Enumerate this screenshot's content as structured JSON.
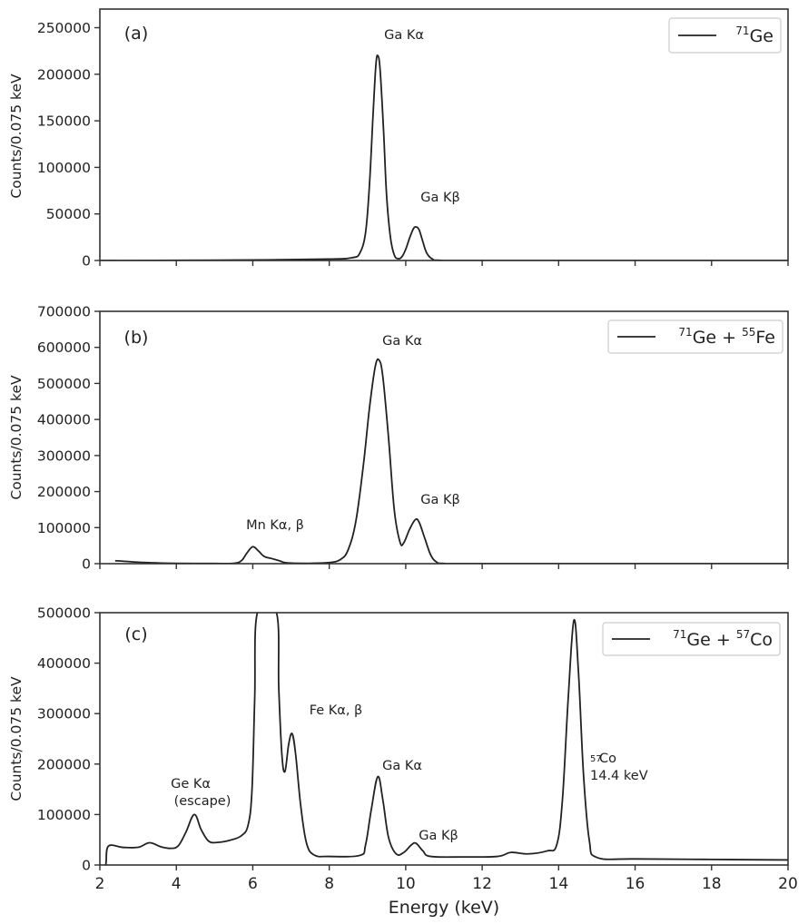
{
  "chart_data": [
    {
      "type": "line",
      "panel_label": "(a)",
      "ylabel": "Counts/0.075 keV",
      "xlabel": "",
      "xlim": [
        2,
        20
      ],
      "ylim": [
        0,
        270000
      ],
      "xticks": [
        2,
        4,
        6,
        8,
        10,
        12,
        14,
        16,
        18,
        20
      ],
      "yticks": [
        0,
        50000,
        100000,
        150000,
        200000,
        250000
      ],
      "show_xtick_labels": false,
      "grid": false,
      "legend_position": "top-right",
      "legend": [
        {
          "t": "71",
          "sup": true
        },
        {
          "t": "Ge"
        }
      ],
      "annotations": [
        "Ga Kα",
        "Ga Kβ"
      ],
      "series": [
        {
          "color": "#222222",
          "points": [
            [
              2,
              0
            ],
            [
              4,
              200
            ],
            [
              6,
              600
            ],
            [
              8,
              1500
            ],
            [
              8.6,
              3000
            ],
            [
              8.8,
              8000
            ],
            [
              8.95,
              30000
            ],
            [
              9.05,
              80000
            ],
            [
              9.15,
              160000
            ],
            [
              9.22,
              210000
            ],
            [
              9.27,
              220000
            ],
            [
              9.33,
              205000
            ],
            [
              9.42,
              140000
            ],
            [
              9.5,
              70000
            ],
            [
              9.6,
              25000
            ],
            [
              9.7,
              6000
            ],
            [
              9.8,
              2000
            ],
            [
              9.9,
              4000
            ],
            [
              10.0,
              12000
            ],
            [
              10.1,
              24000
            ],
            [
              10.2,
              34000
            ],
            [
              10.27,
              36000
            ],
            [
              10.35,
              33000
            ],
            [
              10.45,
              20000
            ],
            [
              10.55,
              8000
            ],
            [
              10.7,
              1500
            ],
            [
              10.9,
              200
            ],
            [
              12,
              0
            ],
            [
              20,
              0
            ]
          ]
        }
      ]
    },
    {
      "type": "line",
      "panel_label": "(b)",
      "ylabel": "Counts/0.075 keV",
      "xlabel": "",
      "xlim": [
        2,
        20
      ],
      "ylim": [
        0,
        700000
      ],
      "xticks": [
        2,
        4,
        6,
        8,
        10,
        12,
        14,
        16,
        18,
        20
      ],
      "yticks": [
        0,
        100000,
        200000,
        300000,
        400000,
        500000,
        600000,
        700000
      ],
      "show_xtick_labels": false,
      "grid": false,
      "legend_position": "top-right",
      "legend": [
        {
          "t": "71",
          "sup": true
        },
        {
          "t": "Ge + "
        },
        {
          "t": "55",
          "sup": true
        },
        {
          "t": "Fe"
        }
      ],
      "annotations": [
        "Ga Kα",
        "Ga Kβ",
        "Mn Kα, β"
      ],
      "series": [
        {
          "color": "#222222",
          "points": [
            [
              2.4,
              8000
            ],
            [
              2.6,
              7000
            ],
            [
              3.0,
              4000
            ],
            [
              3.5,
              2000
            ],
            [
              4,
              1000
            ],
            [
              5,
              500
            ],
            [
              5.5,
              1000
            ],
            [
              5.7,
              8000
            ],
            [
              5.85,
              30000
            ],
            [
              6.0,
              47000
            ],
            [
              6.15,
              35000
            ],
            [
              6.3,
              20000
            ],
            [
              6.5,
              14000
            ],
            [
              6.7,
              8000
            ],
            [
              6.9,
              2000
            ],
            [
              7.5,
              1000
            ],
            [
              8.0,
              3000
            ],
            [
              8.3,
              12000
            ],
            [
              8.5,
              40000
            ],
            [
              8.7,
              120000
            ],
            [
              8.9,
              280000
            ],
            [
              9.05,
              430000
            ],
            [
              9.2,
              545000
            ],
            [
              9.3,
              565000
            ],
            [
              9.4,
              520000
            ],
            [
              9.55,
              350000
            ],
            [
              9.7,
              150000
            ],
            [
              9.85,
              60000
            ],
            [
              9.95,
              58000
            ],
            [
              10.1,
              95000
            ],
            [
              10.25,
              122000
            ],
            [
              10.35,
              115000
            ],
            [
              10.5,
              70000
            ],
            [
              10.65,
              25000
            ],
            [
              10.8,
              5000
            ],
            [
              11,
              500
            ],
            [
              12,
              0
            ],
            [
              20,
              0
            ]
          ]
        }
      ]
    },
    {
      "type": "line",
      "panel_label": "(c)",
      "ylabel": "Counts/0.075 keV",
      "xlabel": "Energy (keV)",
      "xlim": [
        2,
        20
      ],
      "ylim": [
        0,
        500000
      ],
      "xticks": [
        2,
        4,
        6,
        8,
        10,
        12,
        14,
        16,
        18,
        20
      ],
      "yticks": [
        0,
        100000,
        200000,
        300000,
        400000,
        500000
      ],
      "show_xtick_labels": true,
      "grid": false,
      "legend_position": "top-right",
      "legend": [
        {
          "t": "71",
          "sup": true
        },
        {
          "t": "Ge + "
        },
        {
          "t": "57",
          "sup": true
        },
        {
          "t": "Co"
        }
      ],
      "annotations": [
        "Ge Kα",
        "(escape)",
        "Fe Kα, β",
        "Ga Kα",
        "Ga Kβ",
        "57",
        "Co",
        "14.4 keV"
      ],
      "series": [
        {
          "color": "#222222",
          "points": [
            [
              2,
              0
            ],
            [
              2.15,
              0
            ],
            [
              2.22,
              37000
            ],
            [
              2.6,
              35000
            ],
            [
              3.0,
              35000
            ],
            [
              3.3,
              44000
            ],
            [
              3.6,
              36000
            ],
            [
              3.85,
              33000
            ],
            [
              4.05,
              38000
            ],
            [
              4.25,
              65000
            ],
            [
              4.47,
              100000
            ],
            [
              4.65,
              70000
            ],
            [
              4.85,
              47000
            ],
            [
              5.1,
              45000
            ],
            [
              5.4,
              49000
            ],
            [
              5.7,
              58000
            ],
            [
              5.88,
              80000
            ],
            [
              5.98,
              150000
            ],
            [
              6.05,
              330000
            ],
            [
              6.12,
              500000
            ],
            [
              6.62,
              500000
            ],
            [
              6.68,
              350000
            ],
            [
              6.76,
              220000
            ],
            [
              6.84,
              185000
            ],
            [
              6.94,
              240000
            ],
            [
              7.03,
              260000
            ],
            [
              7.12,
              220000
            ],
            [
              7.25,
              120000
            ],
            [
              7.4,
              45000
            ],
            [
              7.6,
              20000
            ],
            [
              8.0,
              17000
            ],
            [
              8.8,
              19000
            ],
            [
              8.95,
              40000
            ],
            [
              9.1,
              110000
            ],
            [
              9.27,
              175000
            ],
            [
              9.4,
              130000
            ],
            [
              9.55,
              55000
            ],
            [
              9.75,
              22000
            ],
            [
              9.95,
              25000
            ],
            [
              10.15,
              40000
            ],
            [
              10.27,
              43000
            ],
            [
              10.45,
              28000
            ],
            [
              10.65,
              17000
            ],
            [
              11.5,
              16000
            ],
            [
              12.4,
              17000
            ],
            [
              12.75,
              25000
            ],
            [
              13.2,
              22000
            ],
            [
              13.7,
              28000
            ],
            [
              13.95,
              40000
            ],
            [
              14.1,
              130000
            ],
            [
              14.25,
              330000
            ],
            [
              14.4,
              485000
            ],
            [
              14.52,
              380000
            ],
            [
              14.65,
              180000
            ],
            [
              14.8,
              50000
            ],
            [
              15.0,
              15000
            ],
            [
              16,
              12000
            ],
            [
              18,
              11000
            ],
            [
              20,
              10000
            ]
          ]
        }
      ]
    }
  ]
}
